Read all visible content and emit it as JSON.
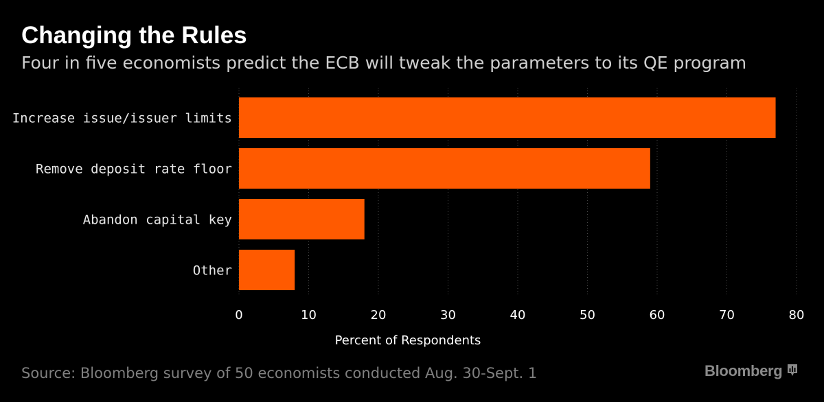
{
  "header": {
    "title": "Changing the Rules",
    "subtitle": "Four in five economists predict the ECB will tweak the parameters to its QE program"
  },
  "footer": {
    "source": "Source: Bloomberg survey of 50 economists conducted Aug. 30-Sept. 1",
    "brand": "Bloomberg",
    "brand_icon": "bloomberg-terminal-icon"
  },
  "colors": {
    "background": "#000000",
    "bar": "#ff5a00",
    "grid": "#4a4a4a",
    "source_text": "#808080"
  },
  "chart_data": {
    "type": "bar",
    "orientation": "horizontal",
    "title": "Changing the Rules",
    "subtitle": "Four in five economists predict the ECB will tweak the parameters to its QE program",
    "categories": [
      "Increase issue/issuer limits",
      "Remove deposit rate floor",
      "Abandon capital key",
      "Other"
    ],
    "values": [
      77,
      59,
      18,
      8
    ],
    "xlabel": "Percent of Respondents",
    "ylabel": "",
    "xlim": [
      0,
      80
    ],
    "xticks": [
      0,
      10,
      20,
      30,
      40,
      50,
      60,
      70,
      80
    ],
    "grid": "vertical dotted",
    "legend": "none"
  }
}
